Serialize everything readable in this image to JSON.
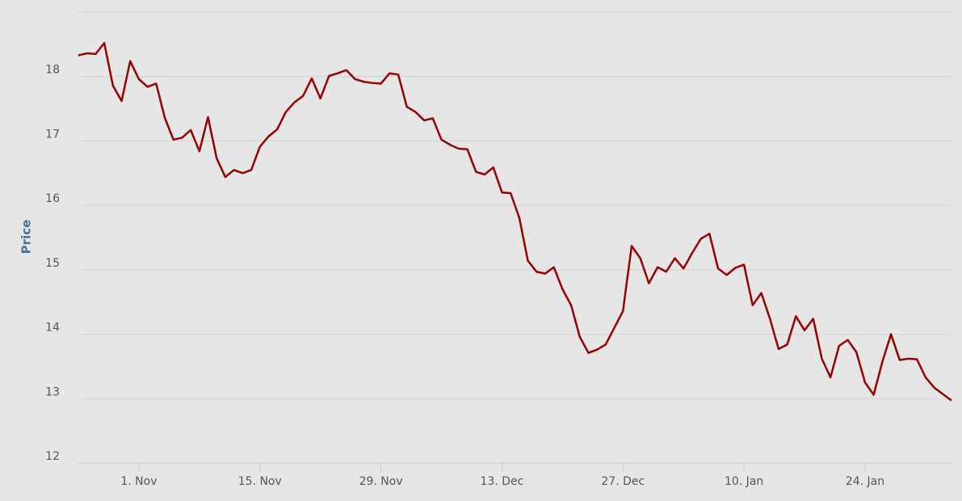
{
  "chart_data": {
    "type": "line",
    "y_label": "Price",
    "x": [
      "25. Oct",
      "26. Oct",
      "27. Oct",
      "28. Oct",
      "29. Oct",
      "30. Oct",
      "31. Oct",
      "1. Nov",
      "2. Nov",
      "3. Nov",
      "4. Nov",
      "5. Nov",
      "6. Nov",
      "7. Nov",
      "8. Nov",
      "9. Nov",
      "10. Nov",
      "11. Nov",
      "12. Nov",
      "13. Nov",
      "14. Nov",
      "15. Nov",
      "16. Nov",
      "17. Nov",
      "18. Nov",
      "19. Nov",
      "20. Nov",
      "21. Nov",
      "22. Nov",
      "23. Nov",
      "24. Nov",
      "25. Nov",
      "26. Nov",
      "27. Nov",
      "28. Nov",
      "29. Nov",
      "30. Nov",
      "1. Dec",
      "2. Dec",
      "3. Dec",
      "4. Dec",
      "5. Dec",
      "6. Dec",
      "7. Dec",
      "8. Dec",
      "9. Dec",
      "10. Dec",
      "11. Dec",
      "12. Dec",
      "13. Dec",
      "14. Dec",
      "15. Dec",
      "16. Dec",
      "17. Dec",
      "18. Dec",
      "19. Dec",
      "20. Dec",
      "21. Dec",
      "22. Dec",
      "23. Dec",
      "24. Dec",
      "25. Dec",
      "26. Dec",
      "27. Dec",
      "28. Dec",
      "29. Dec",
      "30. Dec",
      "31. Dec",
      "1. Jan",
      "2. Jan",
      "3. Jan",
      "4. Jan",
      "5. Jan",
      "6. Jan",
      "7. Jan",
      "8. Jan",
      "9. Jan",
      "10. Jan",
      "11. Jan",
      "12. Jan",
      "13. Jan",
      "14. Jan",
      "15. Jan",
      "16. Jan",
      "17. Jan",
      "18. Jan",
      "19. Jan",
      "20. Jan",
      "21. Jan",
      "22. Jan",
      "23. Jan",
      "24. Jan",
      "25. Jan",
      "26. Jan",
      "27. Jan",
      "28. Jan",
      "29. Jan",
      "30. Jan",
      "31. Jan",
      "1. Feb",
      "2. Feb",
      "3. Feb"
    ],
    "series": [
      {
        "color": "#990000",
        "values": [
          18.33,
          18.36,
          18.35,
          18.52,
          17.86,
          17.62,
          18.24,
          17.96,
          17.84,
          17.89,
          17.36,
          17.02,
          17.05,
          17.17,
          16.84,
          17.37,
          16.73,
          16.44,
          16.55,
          16.5,
          16.55,
          16.91,
          17.07,
          17.18,
          17.45,
          17.6,
          17.7,
          17.97,
          17.66,
          18.01,
          18.05,
          18.1,
          17.96,
          17.92,
          17.9,
          17.89,
          18.05,
          18.03,
          17.53,
          17.45,
          17.32,
          17.35,
          17.02,
          16.94,
          16.88,
          16.87,
          16.52,
          16.48,
          16.59,
          16.2,
          16.19,
          15.81,
          15.14,
          14.97,
          14.94,
          15.04,
          14.7,
          14.45,
          13.96,
          13.71,
          13.76,
          13.84,
          14.1,
          14.36,
          15.37,
          15.18,
          14.79,
          15.04,
          14.97,
          15.18,
          15.02,
          15.26,
          15.48,
          15.56,
          15.02,
          14.92,
          15.03,
          15.08,
          14.45,
          14.64,
          14.24,
          13.77,
          13.84,
          14.28,
          14.06,
          14.24,
          13.62,
          13.33,
          13.82,
          13.91,
          13.72,
          13.25,
          13.06,
          13.57,
          14.0,
          13.6,
          13.62,
          13.61,
          13.33,
          13.17,
          13.07,
          12.97
        ]
      }
    ],
    "xticks": [
      "1. Nov",
      "15. Nov",
      "29. Nov",
      "13. Dec",
      "27. Dec",
      "10. Jan",
      "24. Jan"
    ],
    "ylim": [
      12,
      19
    ],
    "yticks": [
      12,
      13,
      14,
      15,
      16,
      17,
      18
    ],
    "grid": true
  }
}
